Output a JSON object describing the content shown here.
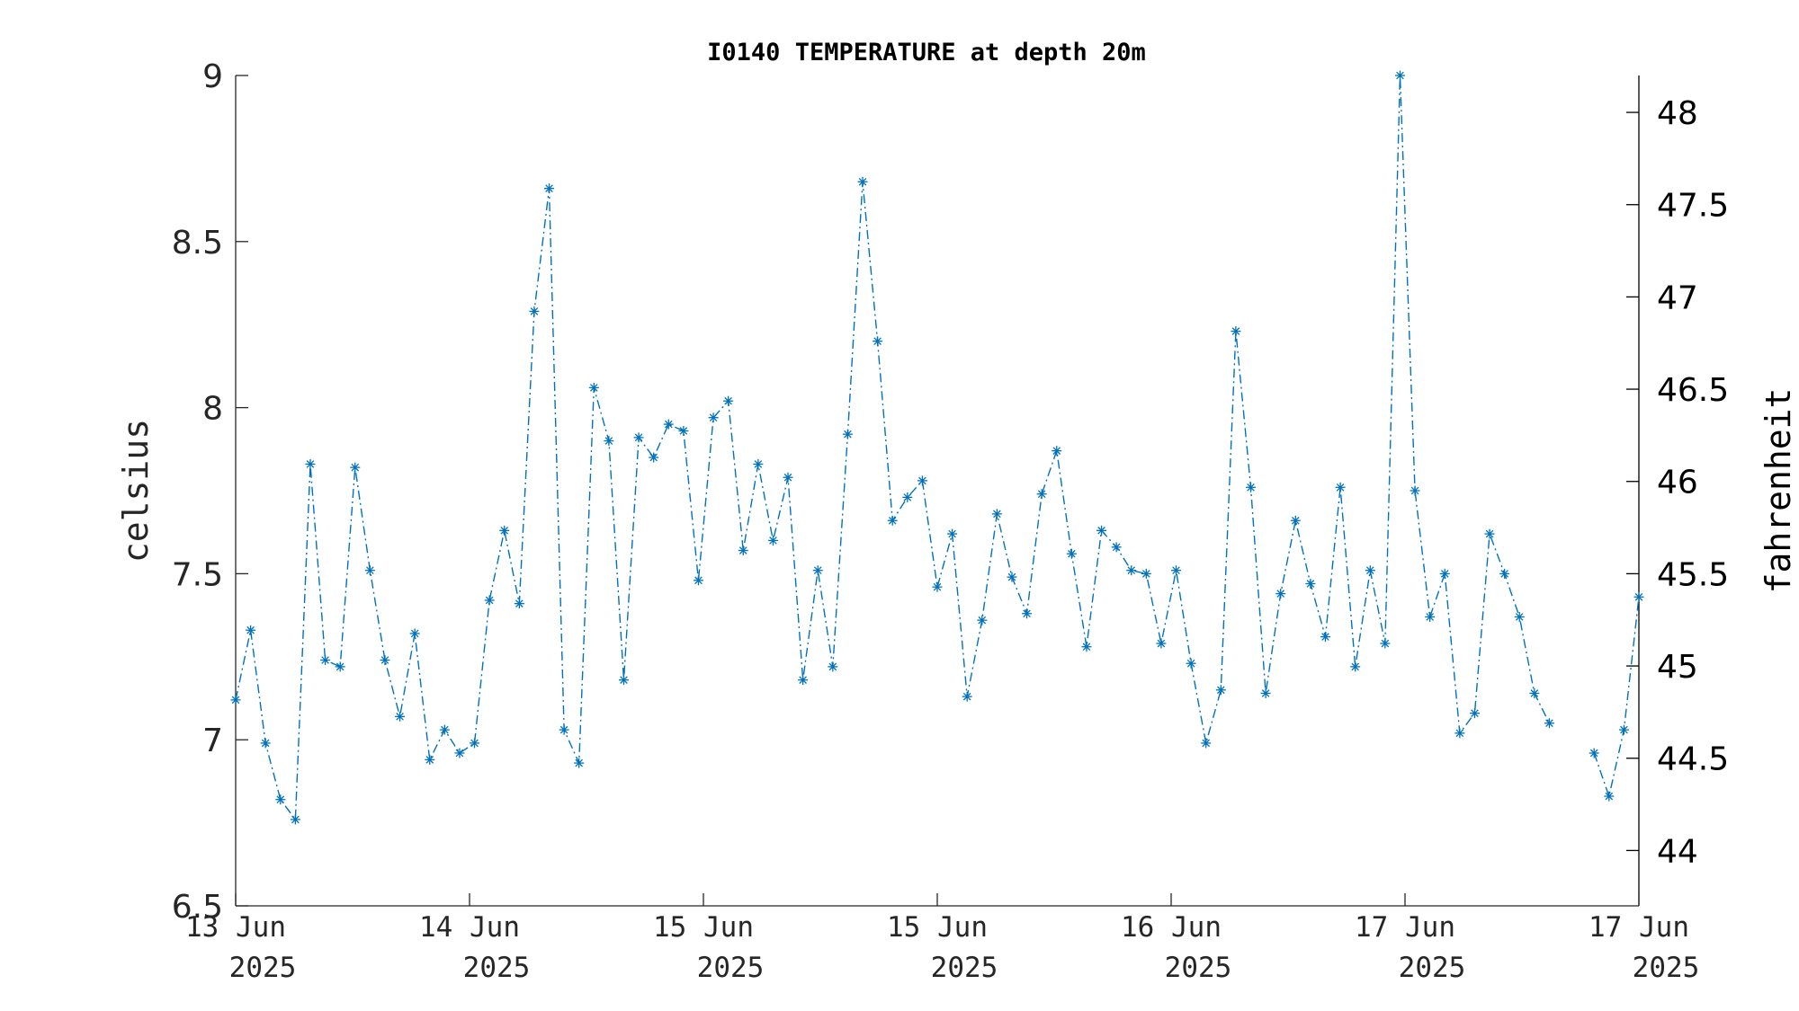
{
  "chart_data": {
    "type": "line",
    "title": "I0140 TEMPERATURE at depth 20m",
    "ylabel": "celsius",
    "y2label": "fahrenheit",
    "ylim": [
      6.5,
      9
    ],
    "y2lim": [
      43.7,
      48.2
    ],
    "yticks": [
      "6.5",
      "7",
      "7.5",
      "8",
      "8.5",
      "9"
    ],
    "y2ticks": [
      "44",
      "44.5",
      "45",
      "45.5",
      "46",
      "46.5",
      "47",
      "47.5",
      "48"
    ],
    "xticks": [
      {
        "line1": "13 Jun",
        "line2": "2025"
      },
      {
        "line1": "14 Jun",
        "line2": "2025"
      },
      {
        "line1": "15 Jun",
        "line2": "2025"
      },
      {
        "line1": "15 Jun",
        "line2": "2025"
      },
      {
        "line1": "16 Jun",
        "line2": "2025"
      },
      {
        "line1": "17 Jun",
        "line2": "2025"
      },
      {
        "line1": "17 Jun",
        "line2": "2025"
      }
    ],
    "marker": "asterisk",
    "line_style": "dash-dot",
    "color": "#0072BD",
    "series": [
      {
        "segments": [
          [
            7.12,
            7.33,
            6.99,
            6.82,
            6.76,
            7.83,
            7.24,
            7.22,
            7.82,
            7.51,
            7.24,
            7.07,
            7.32,
            6.94,
            7.03,
            6.96,
            6.99,
            7.42,
            7.63,
            7.41,
            8.29,
            8.66,
            7.03,
            6.93,
            8.06,
            7.9,
            7.18,
            7.91,
            7.85,
            7.95,
            7.93,
            7.48,
            7.97,
            8.02,
            7.57,
            7.83,
            7.6,
            7.79,
            7.18,
            7.51,
            7.22,
            7.92,
            8.68,
            8.2,
            7.66,
            7.73,
            7.78,
            7.46,
            7.62,
            7.13,
            7.36,
            7.68,
            7.49,
            7.38,
            7.74,
            7.87,
            7.56,
            7.28,
            7.63,
            7.58,
            7.51,
            7.5,
            7.29,
            7.51,
            7.23,
            6.99,
            7.15,
            8.23,
            7.76,
            7.14,
            7.44,
            7.66,
            7.47,
            7.31,
            7.76,
            7.22,
            7.51,
            7.29,
            9.0,
            7.75,
            7.37,
            7.5,
            7.02,
            7.08,
            7.62,
            7.5,
            7.37,
            7.14,
            7.05
          ],
          [
            6.96,
            6.83,
            7.03,
            7.43
          ]
        ]
      }
    ]
  }
}
